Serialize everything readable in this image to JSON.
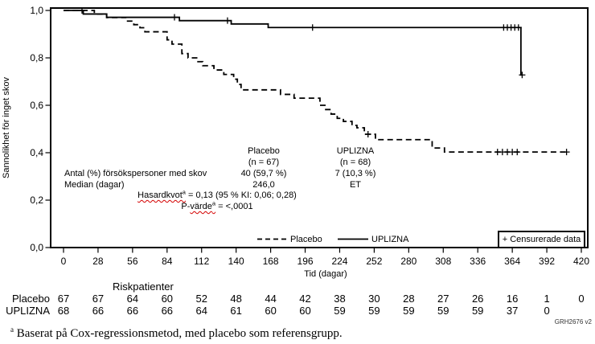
{
  "colors": {
    "line": "#000000",
    "misspell_underline": "#d40000",
    "background": "#ffffff"
  },
  "chart_data": {
    "type": "line",
    "subtype": "kaplan-meier-step",
    "title": "",
    "xlabel": "Tid (dagar)",
    "ylabel": "Sannolikhet för inget skov",
    "xlim": [
      0,
      420
    ],
    "ylim": [
      0.0,
      1.0
    ],
    "grid": false,
    "x_ticks": [
      0,
      28,
      56,
      84,
      112,
      140,
      168,
      196,
      224,
      252,
      280,
      308,
      336,
      364,
      392,
      420
    ],
    "y_ticks": [
      {
        "label": "1,0",
        "value": 1.0
      },
      {
        "label": "0,8",
        "value": 0.8
      },
      {
        "label": "0,6",
        "value": 0.6
      },
      {
        "label": "0,4",
        "value": 0.4
      },
      {
        "label": "0,2",
        "value": 0.2
      },
      {
        "label": "0,0",
        "value": 0.0
      }
    ],
    "series": [
      {
        "name": "Placebo",
        "line_style": "dashed",
        "color": "#000000",
        "steps": [
          [
            0,
            1.0
          ],
          [
            25,
            0.985
          ],
          [
            35,
            0.97
          ],
          [
            51,
            0.955
          ],
          [
            57,
            0.94
          ],
          [
            62,
            0.927
          ],
          [
            66,
            0.91
          ],
          [
            84,
            0.876
          ],
          [
            88,
            0.858
          ],
          [
            96,
            0.818
          ],
          [
            101,
            0.8
          ],
          [
            108,
            0.784
          ],
          [
            113,
            0.767
          ],
          [
            122,
            0.749
          ],
          [
            130,
            0.73
          ],
          [
            138,
            0.71
          ],
          [
            141,
            0.688
          ],
          [
            144,
            0.665
          ],
          [
            176,
            0.646
          ],
          [
            187,
            0.63
          ],
          [
            208,
            0.6
          ],
          [
            212,
            0.582
          ],
          [
            217,
            0.563
          ],
          [
            222,
            0.545
          ],
          [
            227,
            0.532
          ],
          [
            234,
            0.515
          ],
          [
            238,
            0.505
          ],
          [
            244,
            0.478
          ],
          [
            253,
            0.455
          ],
          [
            299,
            0.42
          ],
          [
            309,
            0.403
          ]
        ],
        "end_day": 409,
        "censor_marks": [
          [
            247,
            0.478
          ],
          [
            352,
            0.403
          ],
          [
            356,
            0.403
          ],
          [
            360,
            0.403
          ],
          [
            364,
            0.403
          ],
          [
            368,
            0.403
          ],
          [
            408,
            0.403
          ]
        ]
      },
      {
        "name": "UPLIZNA",
        "line_style": "solid",
        "color": "#000000",
        "steps": [
          [
            0,
            1.0
          ],
          [
            16,
            0.985
          ],
          [
            35,
            0.971
          ],
          [
            94,
            0.957
          ],
          [
            136,
            0.943
          ],
          [
            166,
            0.928
          ],
          [
            371,
            0.728
          ]
        ],
        "end_day": 372,
        "censor_marks": [
          [
            15,
            1.0
          ],
          [
            90,
            0.971
          ],
          [
            133,
            0.957
          ],
          [
            202,
            0.928
          ],
          [
            357,
            0.928
          ],
          [
            360,
            0.928
          ],
          [
            363,
            0.928
          ],
          [
            366,
            0.928
          ],
          [
            369,
            0.928
          ],
          [
            372,
            0.728
          ]
        ]
      }
    ],
    "legend_position": "bottom-inside"
  },
  "stats_table": {
    "columns": [
      {
        "name": "Placebo",
        "n": "(n = 67)"
      },
      {
        "name": "UPLIZNA",
        "n": "(n = 68)"
      }
    ],
    "rows": [
      {
        "label": "Antal (%) försökspersoner med skov",
        "values": [
          "40 (59,7 %)",
          "7 (10,3 %)"
        ]
      },
      {
        "label": "Median (dagar)",
        "values": [
          "246,0",
          "ET"
        ]
      }
    ],
    "hazard_ratio": {
      "word": "Hasardkvot",
      "sup": "a",
      "rest": " = 0,13 (95 % KI: 0,06; 0,28)"
    },
    "p_value": {
      "prefix": "P-",
      "word": "värde",
      "sup": "a",
      "rest": " = <,0001"
    }
  },
  "legend": {
    "items": [
      {
        "label": "Placebo",
        "line_style": "dashed"
      },
      {
        "label": "UPLIZNA",
        "line_style": "solid"
      }
    ]
  },
  "censored_box": {
    "label": "+ Censurerade data"
  },
  "risk_table": {
    "title": "Riskpatienter",
    "rows": [
      {
        "label": "Placebo",
        "values": [
          "67",
          "67",
          "64",
          "60",
          "52",
          "48",
          "44",
          "42",
          "38",
          "30",
          "28",
          "27",
          "26",
          "16",
          "1",
          "0"
        ]
      },
      {
        "label": "UPLIZNA",
        "values": [
          "68",
          "66",
          "66",
          "66",
          "64",
          "61",
          "60",
          "60",
          "59",
          "59",
          "59",
          "59",
          "59",
          "37",
          "0"
        ]
      }
    ]
  },
  "footnote": {
    "sup": "a",
    "text": " Baserat på Cox-regressionsmetod, med placebo som referensgrupp."
  },
  "watermark": "GRH2676 v2"
}
